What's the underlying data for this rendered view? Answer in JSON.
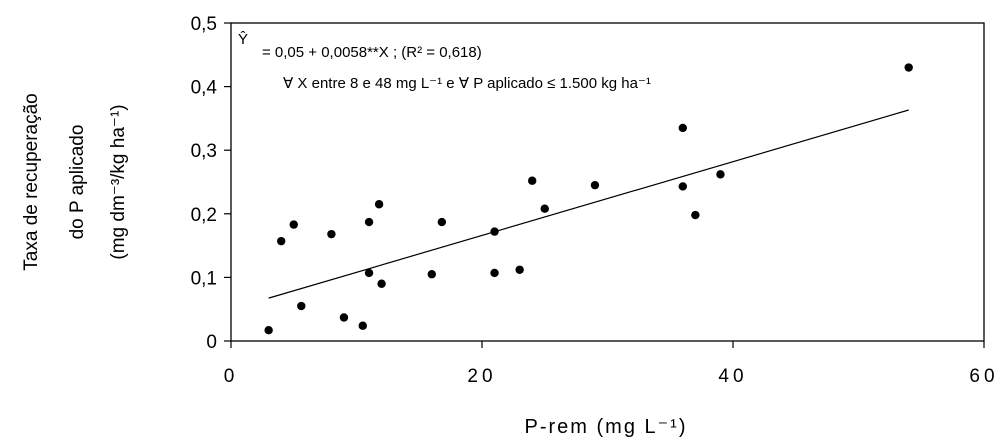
{
  "chart_data": {
    "type": "scatter",
    "title": "",
    "xlabel": "P-rem (mg L⁻¹)",
    "ylabel": [
      "Taxa de recuperação",
      "do P aplicado",
      "(mg dm⁻³/kg ha⁻¹)"
    ],
    "xlim": [
      0,
      60
    ],
    "ylim": [
      0,
      0.5
    ],
    "x_ticks": [
      "0",
      "20",
      "40",
      "60"
    ],
    "y_ticks": [
      "0",
      "0,1",
      "0,2",
      "0,3",
      "0,4",
      "0,5"
    ],
    "grid": false,
    "series": [
      {
        "points": [
          {
            "x": 3.0,
            "y": 0.017
          },
          {
            "x": 4.0,
            "y": 0.157
          },
          {
            "x": 5.0,
            "y": 0.183
          },
          {
            "x": 5.6,
            "y": 0.055
          },
          {
            "x": 8.0,
            "y": 0.168
          },
          {
            "x": 9.0,
            "y": 0.037
          },
          {
            "x": 10.5,
            "y": 0.024
          },
          {
            "x": 11.0,
            "y": 0.187
          },
          {
            "x": 11.0,
            "y": 0.107
          },
          {
            "x": 11.8,
            "y": 0.215
          },
          {
            "x": 12.0,
            "y": 0.09
          },
          {
            "x": 16.0,
            "y": 0.105
          },
          {
            "x": 16.8,
            "y": 0.187
          },
          {
            "x": 21.0,
            "y": 0.107
          },
          {
            "x": 21.0,
            "y": 0.172
          },
          {
            "x": 23.0,
            "y": 0.112
          },
          {
            "x": 24.0,
            "y": 0.252
          },
          {
            "x": 25.0,
            "y": 0.208
          },
          {
            "x": 29.0,
            "y": 0.245
          },
          {
            "x": 36.0,
            "y": 0.335
          },
          {
            "x": 36.0,
            "y": 0.243
          },
          {
            "x": 37.0,
            "y": 0.198
          },
          {
            "x": 39.0,
            "y": 0.262
          },
          {
            "x": 54.0,
            "y": 0.43
          }
        ]
      }
    ],
    "fit_line": {
      "intercept": 0.05,
      "slope": 0.0058,
      "x_range": [
        3,
        54
      ]
    },
    "annotation": {
      "symbol": "Ŷ",
      "line1": "= 0,05 + 0,0058**X ; (R² = 0,618)",
      "line2": "∀ X entre 8 e 48 mg L⁻¹ e ∀ P aplicado ≤ 1.500 kg ha⁻¹"
    }
  }
}
